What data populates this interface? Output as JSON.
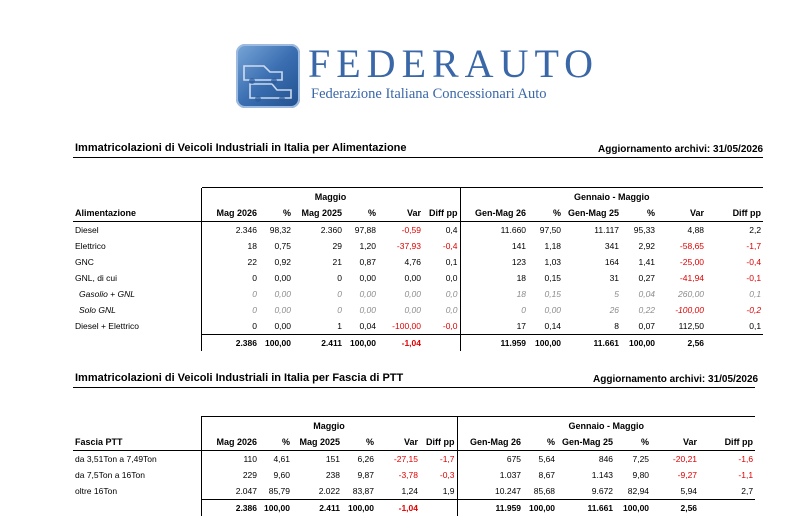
{
  "brand": {
    "name": "FEDERAUTO",
    "subtitle": "Federazione Italiana Concessionari Auto"
  },
  "section1": {
    "title": "Immatricolazioni di Veicoli Industriali in Italia per Alimentazione",
    "update": "Aggiornamento archivi: 31/05/2026",
    "group_month": "Maggio",
    "group_ytd": "Gennaio - Maggio",
    "headers": [
      "Alimentazione",
      "Mag 2026",
      "%",
      "Mag 2025",
      "%",
      "Var",
      "Diff pp",
      "Gen-Mag 26",
      "%",
      "Gen-Mag 25",
      "%",
      "Var",
      "Diff pp"
    ],
    "rows": [
      [
        "Diesel",
        "2.346",
        "98,32",
        "2.360",
        "97,88",
        "-0,59",
        "0,4",
        "11.660",
        "97,50",
        "11.117",
        "95,33",
        "4,88",
        "2,2"
      ],
      [
        "Elettrico",
        "18",
        "0,75",
        "29",
        "1,20",
        "-37,93",
        "-0,4",
        "141",
        "1,18",
        "341",
        "2,92",
        "-58,65",
        "-1,7"
      ],
      [
        "GNC",
        "22",
        "0,92",
        "21",
        "0,87",
        "4,76",
        "0,1",
        "123",
        "1,03",
        "164",
        "1,41",
        "-25,00",
        "-0,4"
      ],
      [
        "GNL, di cui",
        "0",
        "0,00",
        "0",
        "0,00",
        "0,00",
        "0,0",
        "18",
        "0,15",
        "31",
        "0,27",
        "-41,94",
        "-0,1"
      ],
      [
        "Gasolio + GNL",
        "0",
        "0,00",
        "0",
        "0,00",
        "0,00",
        "0,0",
        "18",
        "0,15",
        "5",
        "0,04",
        "260,00",
        "0,1"
      ],
      [
        "Solo GNL",
        "0",
        "0,00",
        "0",
        "0,00",
        "0,00",
        "0,0",
        "0",
        "0,00",
        "26",
        "0,22",
        "-100,00",
        "-0,2"
      ],
      [
        "Diesel + Elettrico",
        "0",
        "0,00",
        "1",
        "0,04",
        "-100,00",
        "-0,0",
        "17",
        "0,14",
        "8",
        "0,07",
        "112,50",
        "0,1"
      ]
    ],
    "total": [
      "",
      "2.386",
      "100,00",
      "2.411",
      "100,00",
      "-1,04",
      "",
      "11.959",
      "100,00",
      "11.661",
      "100,00",
      "2,56",
      ""
    ]
  },
  "section2": {
    "title": "Immatricolazioni di Veicoli Industriali in Italia per Fascia di PTT",
    "update": "Aggiornamento archivi: 31/05/2026",
    "group_month": "Maggio",
    "group_ytd": "Gennaio - Maggio",
    "headers": [
      "Fascia PTT",
      "Mag 2026",
      "%",
      "Mag 2025",
      "%",
      "Var",
      "Diff pp",
      "Gen-Mag 26",
      "%",
      "Gen-Mag 25",
      "%",
      "Var",
      "Diff pp"
    ],
    "rows": [
      [
        "da 3,51Ton a 7,49Ton",
        "110",
        "4,61",
        "151",
        "6,26",
        "-27,15",
        "-1,7",
        "675",
        "5,64",
        "846",
        "7,25",
        "-20,21",
        "-1,6"
      ],
      [
        "da 7,5Ton a 16Ton",
        "229",
        "9,60",
        "238",
        "9,87",
        "-3,78",
        "-0,3",
        "1.037",
        "8,67",
        "1.143",
        "9,80",
        "-9,27",
        "-1,1"
      ],
      [
        "oltre 16Ton",
        "2.047",
        "85,79",
        "2.022",
        "83,87",
        "1,24",
        "1,9",
        "10.247",
        "85,68",
        "9.672",
        "82,94",
        "5,94",
        "2,7"
      ]
    ],
    "total": [
      "",
      "2.386",
      "100,00",
      "2.411",
      "100,00",
      "-1,04",
      "",
      "11.959",
      "100,00",
      "11.661",
      "100,00",
      "2,56",
      ""
    ]
  }
}
